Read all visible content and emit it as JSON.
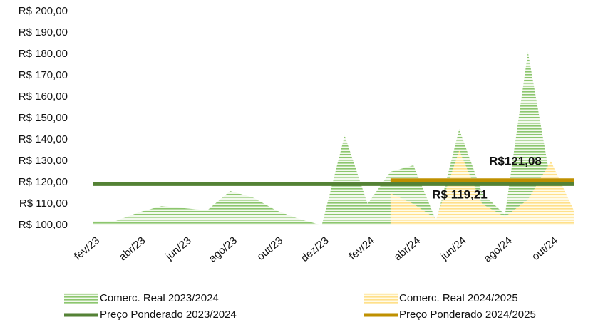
{
  "chart_data": {
    "type": "area",
    "categories": [
      "fev/23",
      null,
      "abr/23",
      null,
      "jun/23",
      null,
      "ago/23",
      null,
      "out/23",
      null,
      "dez/23",
      null,
      "fev/24",
      null,
      "abr/24",
      null,
      "jun/24",
      null,
      "ago/24",
      null,
      "out/24",
      null
    ],
    "ylim": [
      100,
      200
    ],
    "yticks": [
      {
        "value": 100,
        "label": "R$ 100,00"
      },
      {
        "value": 110,
        "label": "R$ 110,00"
      },
      {
        "value": 120,
        "label": "R$ 120,00"
      },
      {
        "value": 130,
        "label": "R$ 130,00"
      },
      {
        "value": 140,
        "label": "R$ 140,00"
      },
      {
        "value": 150,
        "label": "R$ 150,00"
      },
      {
        "value": 160,
        "label": "R$ 160,00"
      },
      {
        "value": 170,
        "label": "R$ 170,00"
      },
      {
        "value": 180,
        "label": "R$ 180,00"
      },
      {
        "value": 190,
        "label": "R$ 190,00"
      },
      {
        "value": 200,
        "label": "R$ 200,00"
      }
    ],
    "series": [
      {
        "name": "Comerc. Real 2023/2024",
        "type": "area",
        "color": "#8cc66e",
        "values": [
          102,
          102,
          106,
          109,
          108,
          107,
          116,
          113,
          107,
          103,
          100,
          142,
          110,
          125,
          128,
          102,
          145,
          115,
          105,
          181,
          120,
          null
        ]
      },
      {
        "name": "Comerc. Real 2024/2025",
        "type": "area",
        "color": "#ffe08a",
        "values": [
          null,
          null,
          null,
          null,
          null,
          null,
          null,
          null,
          null,
          null,
          null,
          null,
          null,
          115,
          110,
          103,
          135,
          110,
          104,
          112,
          130,
          107
        ]
      },
      {
        "name": "Preço Ponderado 2023/2024",
        "type": "line",
        "color": "#548235",
        "label": "R$ 119,21",
        "values": [
          119.21,
          119.21,
          119.21,
          119.21,
          119.21,
          119.21,
          119.21,
          119.21,
          119.21,
          119.21,
          119.21,
          119.21,
          119.21,
          119.21,
          119.21,
          119.21,
          119.21,
          119.21,
          119.21,
          119.21,
          119.21,
          119.21
        ]
      },
      {
        "name": "Preço Ponderado 2024/2025",
        "type": "line",
        "color": "#bf9000",
        "label": "R$121,08",
        "values": [
          null,
          null,
          null,
          null,
          null,
          null,
          null,
          null,
          null,
          null,
          null,
          null,
          null,
          121.08,
          121.08,
          121.08,
          121.08,
          121.08,
          121.08,
          121.08,
          121.08,
          121.08
        ]
      }
    ]
  }
}
